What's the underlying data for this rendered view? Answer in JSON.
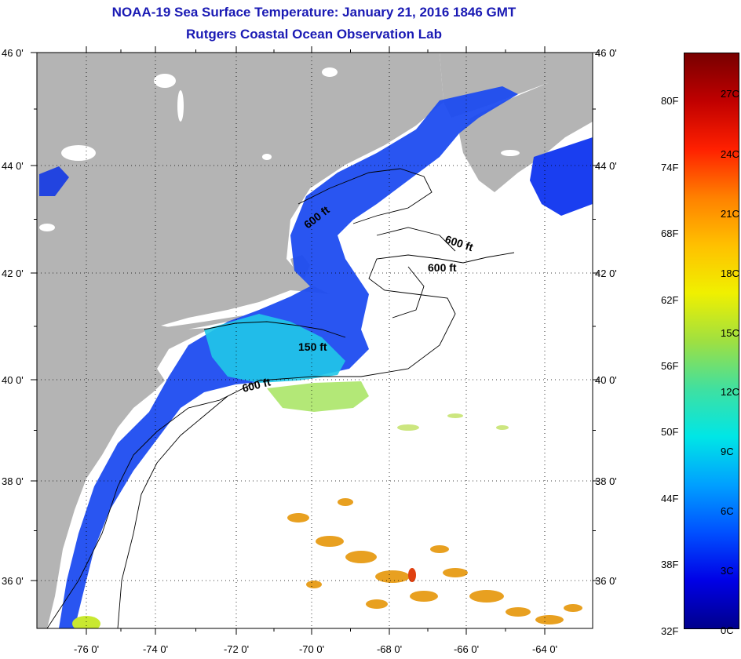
{
  "title": {
    "line1": "NOAA-19 Sea Surface Temperature:  January 21, 2016 1846 GMT",
    "line2": "Rutgers Coastal Ocean Observation Lab"
  },
  "colors": {
    "title": "#1a1ab4",
    "land": "#b4b4b4",
    "cloud": "#ffffff"
  },
  "map": {
    "latitude_labels": [
      "46 0'",
      "44 0'",
      "42 0'",
      "40 0'",
      "38 0'",
      "36 0'"
    ],
    "longitude_labels": [
      "-76 0'",
      "-74 0'",
      "-72 0'",
      "-70 0'",
      "-68 0'",
      "-66 0'",
      "-64 0'"
    ],
    "contour_labels": [
      "600 ft",
      "600 ft",
      "600 ft",
      "150 ft",
      "600 ft"
    ],
    "grid": "dotted"
  },
  "colorbar": {
    "fahrenheit": [
      "80F",
      "74F",
      "68F",
      "62F",
      "56F",
      "50F",
      "44F",
      "38F",
      "32F"
    ],
    "celsius": [
      "27C",
      "24C",
      "21C",
      "18C",
      "15C",
      "12C",
      "9C",
      "6C",
      "3C",
      "0C"
    ],
    "gradient": [
      "#00008c",
      "#0000e6",
      "#0050ff",
      "#00a0ff",
      "#00e6e6",
      "#40e0a0",
      "#a0e040",
      "#f0f000",
      "#ffc000",
      "#ff8000",
      "#ff2000",
      "#c00000",
      "#780000"
    ]
  }
}
